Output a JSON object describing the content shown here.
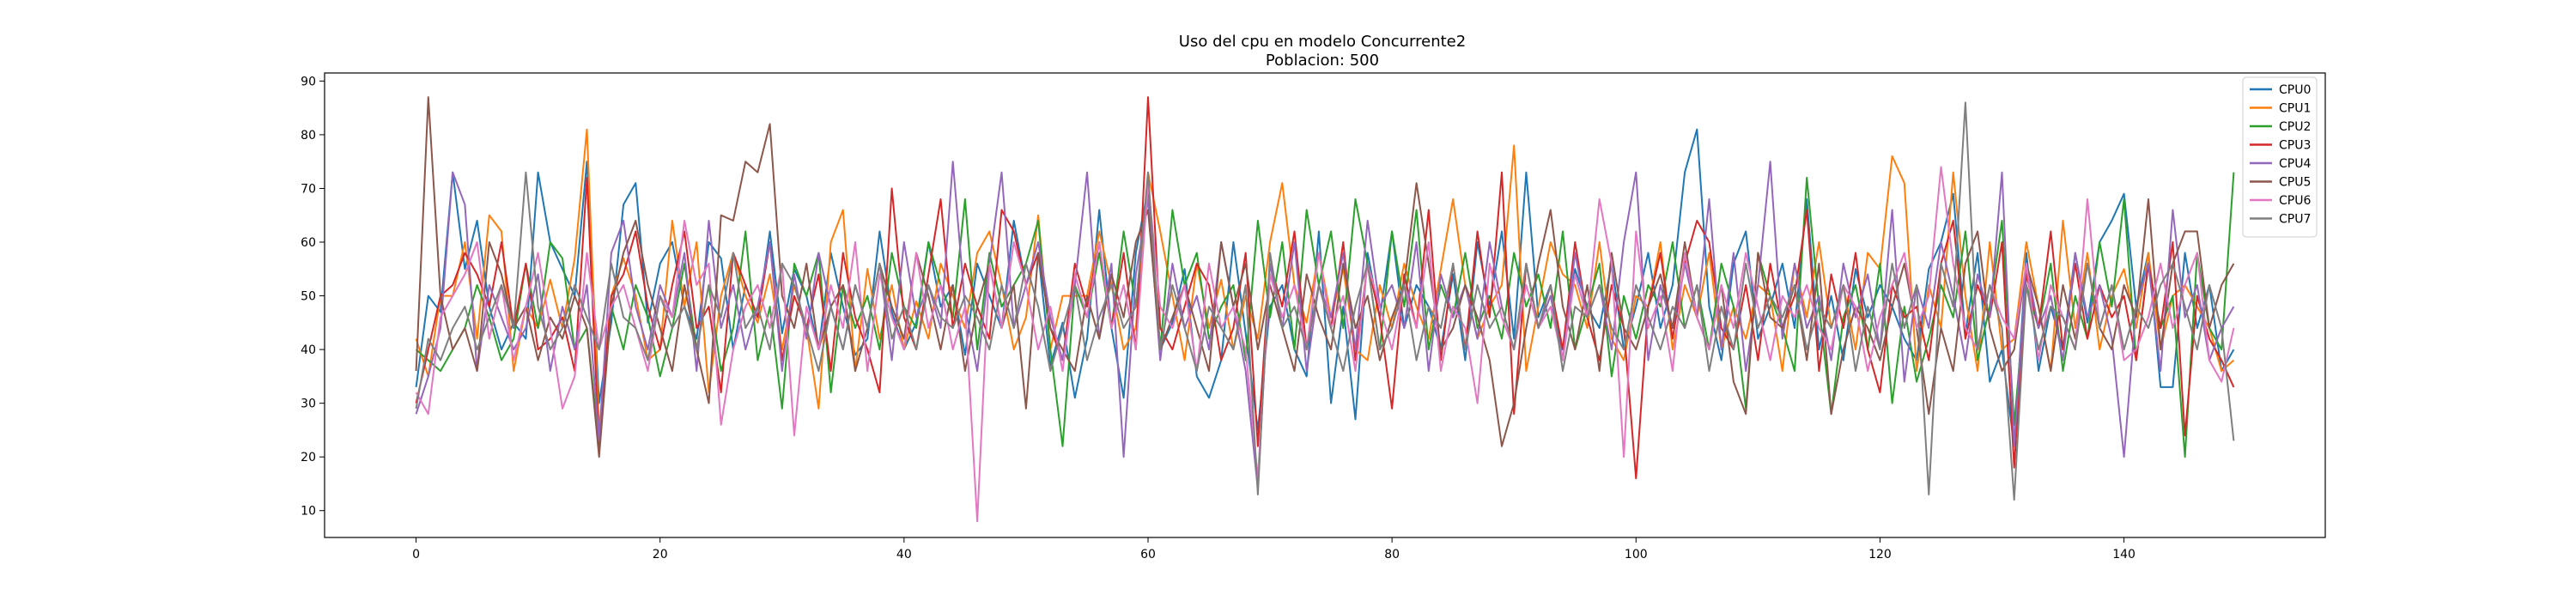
{
  "chart_data": {
    "type": "line",
    "title": "Uso del cpu en modelo Concurrente2",
    "subtitle": "Poblacion: 500",
    "xlabel": "",
    "ylabel": "",
    "xlim": [
      -7.5,
      156.5
    ],
    "ylim": [
      5,
      91.5
    ],
    "xticks": [
      0,
      20,
      40,
      60,
      80,
      100,
      120,
      140
    ],
    "yticks": [
      10,
      20,
      30,
      40,
      50,
      60,
      70,
      80,
      90
    ],
    "grid": false,
    "legend_position": "top-right",
    "x": [
      0,
      1,
      2,
      3,
      4,
      5,
      6,
      7,
      8,
      9,
      10,
      11,
      12,
      13,
      14,
      15,
      16,
      17,
      18,
      19,
      20,
      21,
      22,
      23,
      24,
      25,
      26,
      27,
      28,
      29,
      30,
      31,
      32,
      33,
      34,
      35,
      36,
      37,
      38,
      39,
      40,
      41,
      42,
      43,
      44,
      45,
      46,
      47,
      48,
      49,
      50,
      51,
      52,
      53,
      54,
      55,
      56,
      57,
      58,
      59,
      60,
      61,
      62,
      63,
      64,
      65,
      66,
      67,
      68,
      69,
      70,
      71,
      72,
      73,
      74,
      75,
      76,
      77,
      78,
      79,
      80,
      81,
      82,
      83,
      84,
      85,
      86,
      87,
      88,
      89,
      90,
      91,
      92,
      93,
      94,
      95,
      96,
      97,
      98,
      99,
      100,
      101,
      102,
      103,
      104,
      105,
      106,
      107,
      108,
      109,
      110,
      111,
      112,
      113,
      114,
      115,
      116,
      117,
      118,
      119,
      120,
      121,
      122,
      123,
      124,
      125,
      126,
      127,
      128,
      129,
      130,
      131,
      132,
      133,
      134,
      135,
      136,
      137,
      138,
      139,
      140,
      141,
      142,
      143,
      144,
      145,
      146,
      147,
      148,
      149
    ],
    "series": [
      {
        "name": "CPU0",
        "color": "#1f77b4",
        "values": [
          33,
          50,
          47,
          73,
          55,
          64,
          48,
          40,
          45,
          42,
          73,
          60,
          55,
          50,
          75,
          30,
          45,
          67,
          71,
          45,
          56,
          60,
          48,
          42,
          60,
          57,
          40,
          52,
          46,
          62,
          43,
          55,
          50,
          40,
          58,
          48,
          39,
          42,
          62,
          47,
          40,
          45,
          60,
          48,
          52,
          39,
          56,
          50,
          44,
          64,
          52,
          58,
          37,
          45,
          31,
          42,
          66,
          44,
          31,
          58,
          70,
          40,
          45,
          55,
          35,
          31,
          38,
          60,
          43,
          25,
          48,
          52,
          40,
          35,
          62,
          30,
          48,
          27,
          58,
          46,
          62,
          44,
          52,
          48,
          40,
          54,
          38,
          60,
          48,
          62,
          42,
          73,
          46,
          52,
          38,
          55,
          48,
          44,
          56,
          40,
          48,
          58,
          44,
          52,
          73,
          81,
          48,
          38,
          56,
          62,
          42,
          48,
          56,
          44,
          68,
          40,
          50,
          38,
          55,
          46,
          52,
          48,
          42,
          38,
          55,
          60,
          69,
          43,
          58,
          34,
          40,
          22,
          58,
          36,
          48,
          40,
          58,
          45,
          60,
          64,
          69,
          48,
          58,
          33,
          33,
          58,
          44,
          52,
          36,
          40
        ]
      },
      {
        "name": "CPU1",
        "color": "#ff7f0e",
        "values": [
          42,
          35,
          50,
          50,
          60,
          42,
          65,
          62,
          36,
          48,
          44,
          53,
          44,
          57,
          81,
          25,
          50,
          57,
          50,
          38,
          40,
          64,
          48,
          60,
          32,
          50,
          58,
          50,
          45,
          54,
          40,
          52,
          44,
          29,
          60,
          66,
          36,
          55,
          42,
          52,
          40,
          49,
          42,
          56,
          50,
          44,
          58,
          62,
          52,
          40,
          46,
          65,
          40,
          50,
          50,
          50,
          62,
          52,
          40,
          44,
          73,
          62,
          50,
          38,
          56,
          44,
          53,
          40,
          50,
          42,
          60,
          71,
          52,
          45,
          58,
          46,
          55,
          40,
          38,
          52,
          44,
          56,
          48,
          42,
          55,
          68,
          52,
          42,
          48,
          52,
          78,
          36,
          48,
          60,
          54,
          52,
          44,
          60,
          42,
          38,
          50,
          48,
          60,
          40,
          52,
          46,
          58,
          40,
          48,
          42,
          52,
          50,
          36,
          56,
          46,
          60,
          44,
          52,
          40,
          58,
          55,
          76,
          71,
          36,
          52,
          44,
          73,
          50,
          36,
          60,
          40,
          42,
          60,
          48,
          36,
          64,
          44,
          58,
          40,
          50,
          55,
          44,
          58,
          40,
          50,
          52,
          48,
          44,
          36,
          38
        ]
      },
      {
        "name": "CPU2",
        "color": "#2ca02c",
        "values": [
          40,
          38,
          36,
          40,
          44,
          52,
          46,
          38,
          42,
          56,
          44,
          60,
          57,
          40,
          44,
          22,
          48,
          40,
          52,
          46,
          35,
          44,
          56,
          40,
          52,
          36,
          44,
          62,
          38,
          48,
          29,
          56,
          50,
          58,
          32,
          52,
          44,
          50,
          40,
          58,
          48,
          44,
          60,
          52,
          46,
          68,
          40,
          58,
          48,
          52,
          56,
          64,
          40,
          22,
          52,
          46,
          58,
          44,
          62,
          48,
          72,
          40,
          66,
          52,
          58,
          42,
          48,
          52,
          38,
          64,
          46,
          60,
          40,
          66,
          52,
          62,
          44,
          68,
          56,
          40,
          62,
          48,
          66,
          40,
          52,
          46,
          58,
          44,
          50,
          42,
          58,
          48,
          54,
          44,
          62,
          40,
          48,
          56,
          35,
          50,
          42,
          52,
          48,
          60,
          44,
          52,
          40,
          56,
          48,
          29,
          58,
          50,
          44,
          36,
          72,
          48,
          28,
          46,
          52,
          40,
          56,
          30,
          48,
          34,
          42,
          52,
          46,
          62,
          38,
          48,
          64,
          26,
          52,
          44,
          56,
          36,
          50,
          42,
          60,
          48,
          68,
          38,
          56,
          44,
          50,
          20,
          58,
          44,
          40,
          73
        ]
      },
      {
        "name": "CPU3",
        "color": "#d62728",
        "values": [
          30,
          40,
          50,
          52,
          58,
          54,
          48,
          60,
          44,
          56,
          40,
          42,
          46,
          36,
          72,
          22,
          50,
          54,
          62,
          48,
          40,
          52,
          62,
          44,
          48,
          32,
          58,
          52,
          46,
          60,
          38,
          50,
          44,
          54,
          36,
          58,
          46,
          40,
          32,
          70,
          46,
          40,
          54,
          68,
          44,
          56,
          48,
          42,
          66,
          62,
          52,
          58,
          44,
          38,
          56,
          48,
          60,
          44,
          58,
          40,
          87,
          44,
          40,
          48,
          56,
          52,
          38,
          44,
          58,
          22,
          56,
          48,
          62,
          40,
          52,
          44,
          60,
          38,
          56,
          46,
          29,
          54,
          44,
          66,
          38,
          56,
          40,
          62,
          46,
          73,
          28,
          56,
          44,
          52,
          40,
          60,
          46,
          38,
          52,
          44,
          16,
          48,
          58,
          42,
          56,
          64,
          60,
          44,
          40,
          52,
          38,
          56,
          44,
          50,
          66,
          36,
          54,
          44,
          58,
          40,
          32,
          52,
          46,
          48,
          38,
          56,
          64,
          42,
          52,
          46,
          60,
          18,
          54,
          44,
          62,
          40,
          56,
          42,
          52,
          46,
          50,
          38,
          56,
          44,
          60,
          24,
          50,
          42,
          38,
          33
        ]
      },
      {
        "name": "CPU4",
        "color": "#9467bd",
        "values": [
          28,
          35,
          44,
          73,
          67,
          36,
          52,
          46,
          40,
          44,
          54,
          36,
          48,
          40,
          52,
          23,
          58,
          64,
          48,
          40,
          52,
          46,
          58,
          36,
          64,
          44,
          52,
          40,
          48,
          60,
          36,
          54,
          42,
          58,
          48,
          40,
          52,
          44,
          56,
          38,
          60,
          46,
          52,
          44,
          75,
          48,
          36,
          56,
          73,
          44,
          52,
          60,
          46,
          38,
          52,
          73,
          42,
          56,
          20,
          54,
          68,
          38,
          56,
          44,
          50,
          40,
          60,
          48,
          36,
          14,
          56,
          44,
          60,
          36,
          52,
          46,
          58,
          40,
          64,
          48,
          52,
          44,
          60,
          36,
          54,
          46,
          52,
          42,
          60,
          48,
          40,
          56,
          44,
          50,
          38,
          58,
          46,
          52,
          40,
          60,
          73,
          38,
          52,
          44,
          56,
          46,
          68,
          40,
          58,
          36,
          52,
          75,
          42,
          56,
          44,
          50,
          38,
          56,
          46,
          54,
          40,
          66,
          34,
          52,
          44,
          60,
          50,
          38,
          54,
          46,
          73,
          22,
          56,
          44,
          50,
          38,
          58,
          46,
          52,
          42,
          20,
          48,
          56,
          36,
          66,
          46,
          52,
          38,
          44,
          48
        ]
      },
      {
        "name": "CPU5",
        "color": "#8c564b",
        "values": [
          36,
          87,
          50,
          40,
          44,
          36,
          60,
          54,
          44,
          48,
          38,
          46,
          42,
          50,
          44,
          20,
          48,
          58,
          64,
          52,
          44,
          36,
          52,
          40,
          30,
          65,
          64,
          75,
          73,
          82,
          50,
          44,
          56,
          40,
          48,
          52,
          36,
          44,
          56,
          48,
          42,
          58,
          50,
          40,
          52,
          36,
          48,
          56,
          44,
          52,
          29,
          58,
          44,
          40,
          36,
          50,
          42,
          54,
          46,
          60,
          66,
          40,
          46,
          52,
          44,
          36,
          60,
          48,
          56,
          40,
          52,
          44,
          36,
          54,
          46,
          40,
          56,
          44,
          50,
          38,
          46,
          52,
          71,
          56,
          40,
          44,
          52,
          46,
          38,
          22,
          30,
          44,
          56,
          66,
          48,
          40,
          52,
          36,
          58,
          44,
          40,
          48,
          54,
          44,
          60,
          46,
          40,
          52,
          34,
          28,
          58,
          46,
          44,
          52,
          38,
          56,
          28,
          40,
          48,
          44,
          38,
          48,
          56,
          44,
          28,
          44,
          36,
          56,
          62,
          44,
          36,
          40,
          56,
          48,
          36,
          52,
          42,
          56,
          44,
          40,
          52,
          46,
          68,
          40,
          56,
          62,
          62,
          44,
          52,
          56
        ]
      },
      {
        "name": "CPU6",
        "color": "#e377c2",
        "values": [
          32,
          28,
          46,
          50,
          54,
          60,
          42,
          52,
          38,
          48,
          58,
          44,
          29,
          35,
          58,
          40,
          48,
          52,
          44,
          36,
          50,
          46,
          64,
          52,
          56,
          26,
          40,
          48,
          52,
          44,
          56,
          24,
          48,
          40,
          52,
          44,
          60,
          36,
          54,
          46,
          40,
          58,
          44,
          52,
          40,
          48,
          8,
          56,
          44,
          60,
          52,
          40,
          48,
          36,
          54,
          46,
          60,
          44,
          52,
          40,
          71,
          48,
          44,
          52,
          36,
          56,
          44,
          48,
          40,
          16,
          54,
          46,
          52,
          40,
          58,
          44,
          50,
          36,
          56,
          48,
          40,
          52,
          44,
          60,
          36,
          48,
          44,
          30,
          56,
          46,
          40,
          52,
          44,
          48,
          38,
          54,
          46,
          68,
          56,
          20,
          62,
          44,
          50,
          36,
          58,
          46,
          40,
          52,
          44,
          58,
          48,
          38,
          50,
          46,
          52,
          44,
          40,
          52,
          48,
          36,
          46,
          52,
          58,
          44,
          50,
          74,
          56,
          44,
          40,
          52,
          46,
          42,
          56,
          38,
          52,
          46,
          40,
          68,
          44,
          52,
          38,
          40,
          46,
          56,
          44,
          52,
          58,
          38,
          34,
          44
        ]
      },
      {
        "name": "CPU7",
        "color": "#7f7f7f",
        "values": [
          29,
          42,
          38,
          44,
          48,
          40,
          46,
          52,
          44,
          73,
          48,
          40,
          44,
          52,
          46,
          40,
          56,
          46,
          44,
          38,
          50,
          44,
          48,
          40,
          52,
          46,
          58,
          44,
          48,
          40,
          56,
          52,
          44,
          36,
          48,
          40,
          52,
          44,
          56,
          42,
          48,
          40,
          52,
          46,
          44,
          50,
          46,
          40,
          52,
          44,
          56,
          48,
          36,
          44,
          52,
          38,
          46,
          52,
          44,
          48,
          73,
          40,
          52,
          44,
          36,
          48,
          44,
          40,
          52,
          13,
          58,
          44,
          48,
          40,
          52,
          44,
          36,
          48,
          56,
          40,
          44,
          52,
          38,
          48,
          44,
          56,
          40,
          52,
          44,
          48,
          40,
          56,
          44,
          52,
          36,
          48,
          46,
          52,
          44,
          40,
          52,
          46,
          40,
          48,
          44,
          52,
          36,
          48,
          40,
          56,
          44,
          50,
          46,
          52,
          40,
          48,
          44,
          52,
          36,
          48,
          40,
          56,
          44,
          52,
          13,
          56,
          48,
          86,
          40,
          52,
          44,
          12,
          52,
          40,
          48,
          46,
          40,
          56,
          44,
          52,
          40,
          48,
          44,
          52,
          56,
          48,
          40,
          52,
          44,
          23
        ]
      }
    ]
  }
}
